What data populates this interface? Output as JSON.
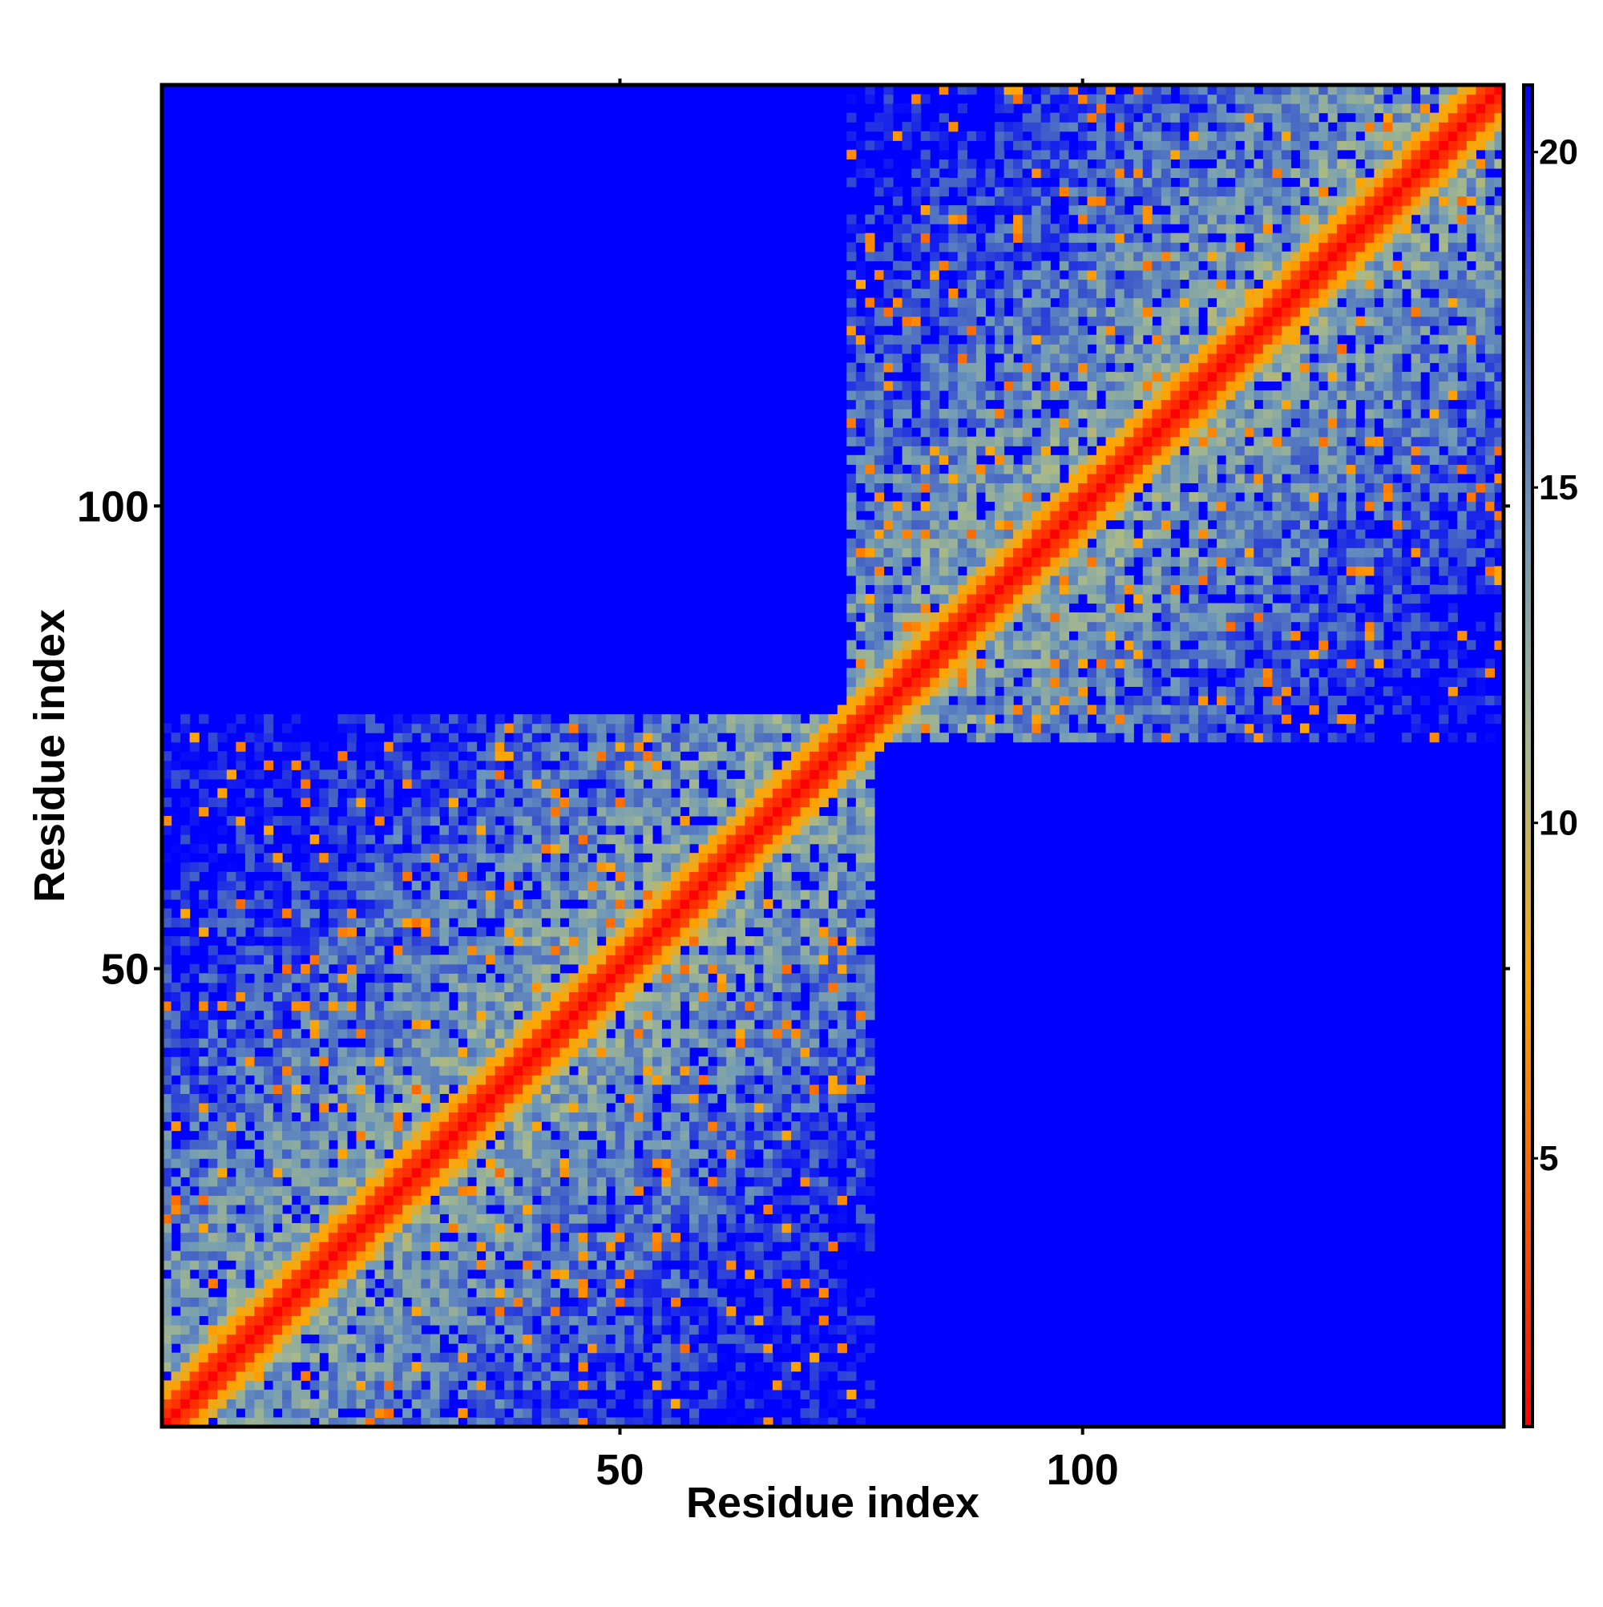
{
  "chart_data": {
    "type": "heatmap",
    "title": "",
    "xlabel": "Residue index",
    "ylabel": "Residue index",
    "x_range": [
      1,
      145
    ],
    "y_range": [
      1,
      145
    ],
    "x_ticks": [
      50,
      100
    ],
    "y_ticks": [
      50,
      100
    ],
    "symmetric": true,
    "description_of_values": "pairwise distance between residues; low values along the diagonal",
    "value_clip": 21,
    "diagonal_value": 1,
    "domains": [
      {
        "start": 1,
        "end": 77
      },
      {
        "start": 75,
        "end": 145
      }
    ],
    "colorbar": {
      "ticks": [
        5,
        10,
        15,
        20
      ],
      "range": [
        1,
        21
      ],
      "colors": [
        "#ff0000",
        "#ff5a00",
        "#ffa500",
        "#a8b98a",
        "#6f9ab8",
        "#3f5cc8",
        "#0000ff"
      ]
    },
    "colors": {
      "background": "#0000ff",
      "frame": "#000000"
    }
  }
}
